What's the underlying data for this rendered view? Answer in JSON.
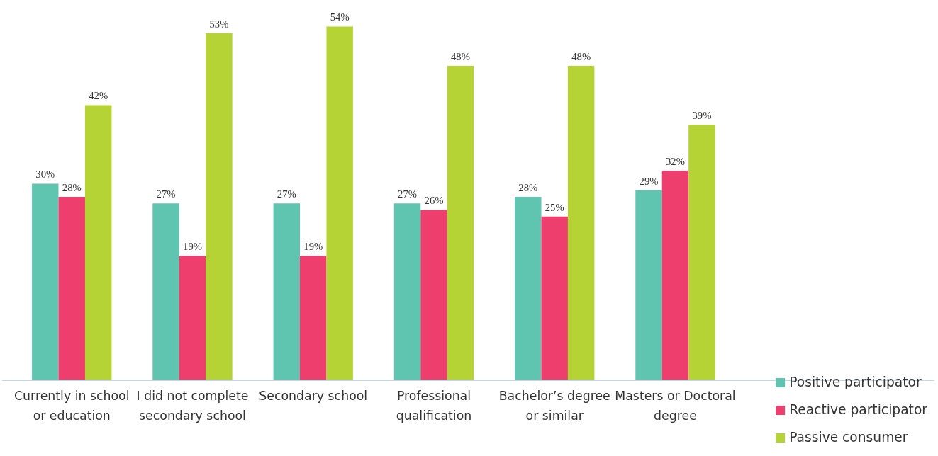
{
  "chart_data": {
    "type": "bar",
    "categories": [
      "Currently in school or education",
      "I did not complete secondary school",
      "Secondary school",
      "Professional qualification",
      "Bachelor’s degree or similar",
      "Masters or Doctoral degree"
    ],
    "series": [
      {
        "name": "Positive participator",
        "color": "#5fc4b0",
        "values": [
          30,
          27,
          27,
          27,
          28,
          29
        ],
        "value_labels": [
          "30%",
          "27%",
          "27%",
          "27%",
          "28%",
          "29%"
        ]
      },
      {
        "name": "Reactive participator",
        "color": "#ee3e6e",
        "values": [
          28,
          19,
          19,
          26,
          25,
          32
        ],
        "value_labels": [
          "28%",
          "19%",
          "19%",
          "26%",
          "25%",
          "32%"
        ]
      },
      {
        "name": "Passive consumer",
        "color": "#b5d334",
        "values": [
          42,
          53,
          54,
          48,
          48,
          39
        ],
        "value_labels": [
          "42%",
          "53%",
          "54%",
          "48%",
          "48%",
          "39%"
        ]
      }
    ],
    "legend": "right",
    "grid": false,
    "tick_labels": "x"
  }
}
